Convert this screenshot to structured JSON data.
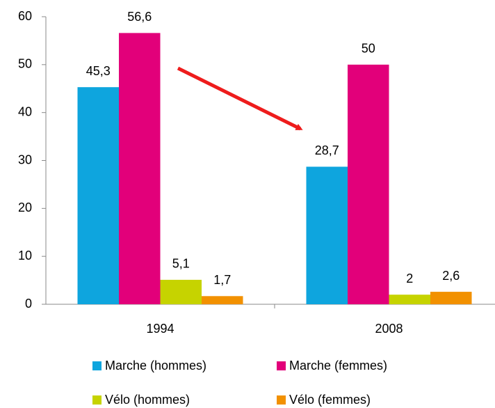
{
  "chart_data": {
    "type": "bar",
    "categories": [
      "1994",
      "2008"
    ],
    "series": [
      {
        "name": "Marche (hommes)",
        "color": "#0ea5de",
        "values": [
          45.3,
          28.7
        ],
        "value_labels": [
          "45,3",
          "28,7"
        ]
      },
      {
        "name": "Marche (femmes)",
        "color": "#e2007a",
        "values": [
          56.6,
          50
        ],
        "value_labels": [
          "56,6",
          "50"
        ]
      },
      {
        "name": "Vélo (hommes)",
        "color": "#c6d300",
        "values": [
          5.1,
          2
        ],
        "value_labels": [
          "5,1",
          "2"
        ]
      },
      {
        "name": "Vélo (femmes)",
        "color": "#f29100",
        "values": [
          1.7,
          2.6
        ],
        "value_labels": [
          "1,7",
          "2,6"
        ]
      }
    ],
    "ylim": [
      0,
      60
    ],
    "yticks": [
      0,
      10,
      20,
      30,
      40,
      50,
      60
    ],
    "grid": false
  }
}
